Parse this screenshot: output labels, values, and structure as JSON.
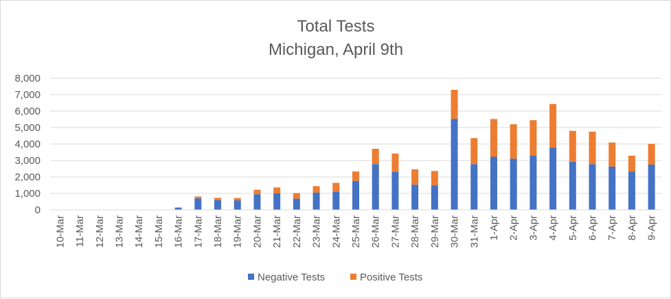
{
  "chart_data": {
    "type": "bar",
    "stacked": true,
    "title": "Total Tests",
    "subtitle": "Michigan, April 9th",
    "xlabel": "",
    "ylabel": "",
    "ylim": [
      0,
      8000
    ],
    "yticks": [
      "0",
      "1,000",
      "2,000",
      "3,000",
      "4,000",
      "5,000",
      "6,000",
      "7,000",
      "8,000"
    ],
    "grid": true,
    "legend_position": "bottom",
    "categories": [
      "10-Mar",
      "11-Mar",
      "12-Mar",
      "13-Mar",
      "14-Mar",
      "15-Mar",
      "16-Mar",
      "17-Mar",
      "18-Mar",
      "19-Mar",
      "20-Mar",
      "21-Mar",
      "22-Mar",
      "23-Mar",
      "24-Mar",
      "25-Mar",
      "26-Mar",
      "27-Mar",
      "28-Mar",
      "29-Mar",
      "30-Mar",
      "31-Mar",
      "1-Apr",
      "2-Apr",
      "3-Apr",
      "4-Apr",
      "5-Apr",
      "6-Apr",
      "7-Apr",
      "8-Apr",
      "9-Apr"
    ],
    "series": [
      {
        "name": "Negative Tests",
        "color": "#4472c4",
        "values": [
          0,
          0,
          0,
          0,
          0,
          0,
          130,
          700,
          590,
          580,
          950,
          1000,
          680,
          1050,
          1100,
          1760,
          2780,
          2320,
          1530,
          1480,
          5530,
          2780,
          3230,
          3110,
          3290,
          3770,
          2920,
          2780,
          2630,
          2330,
          2750
        ]
      },
      {
        "name": "Positive Tests",
        "color": "#ed7d31",
        "values": [
          0,
          0,
          0,
          0,
          0,
          0,
          20,
          110,
          140,
          140,
          270,
          360,
          340,
          390,
          540,
          570,
          930,
          1100,
          930,
          880,
          1760,
          1580,
          2290,
          2090,
          2160,
          2660,
          1880,
          1970,
          1460,
          960,
          1260
        ]
      }
    ]
  }
}
